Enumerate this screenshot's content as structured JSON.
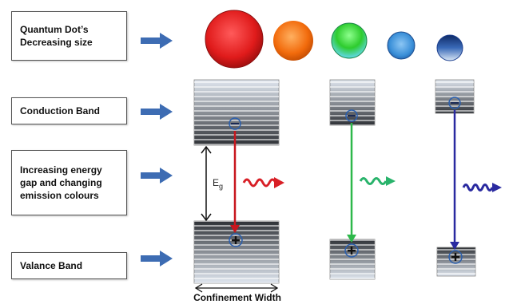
{
  "labels": {
    "size_line1": "Quantum Dot’s",
    "size_line2": "Decreasing size",
    "conduction": "Conduction Band",
    "gap_line1": "Increasing energy",
    "gap_line2": "gap and changing",
    "gap_line3": "emission colours",
    "valance": "Valance  Band",
    "confinement": "Confinement Width",
    "eg_symbol": "E",
    "eg_subscript": "g"
  },
  "colors": {
    "dot_red": "#e01b1b",
    "dot_orange": "#f26b0c",
    "dot_green": "#2ecc2e",
    "dot_blue": "#3a8fd8",
    "dot_navy": "#1c3f8f",
    "emission_red": "#d81f26",
    "emission_green": "#29b36b",
    "emission_blue": "#2a2aa0",
    "label_arrow": "#3d6cb3"
  }
}
